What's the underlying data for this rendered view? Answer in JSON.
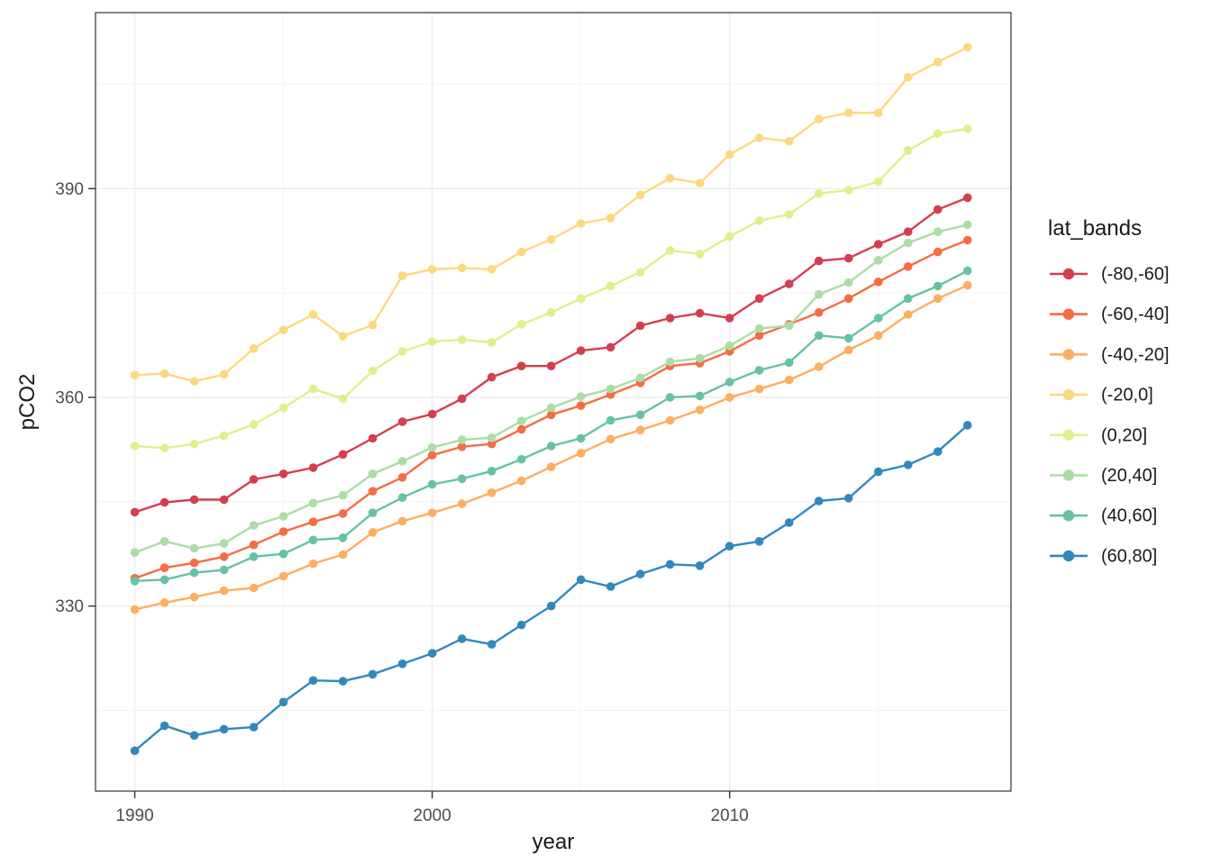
{
  "figure": {
    "background": "#ffffff",
    "panel": {
      "border_color": "#333333",
      "grid_major_color": "#ebebeb",
      "grid_minor_color": "#f2f2f2",
      "tick_color": "#333333",
      "tick_label_color": "#4d4d4d"
    }
  },
  "chart_data": {
    "type": "line",
    "title": "",
    "xlabel": "year",
    "ylabel": "pCO2",
    "legend_title": "lat_bands",
    "legend_position": "right",
    "grid": true,
    "xlim": [
      1988.68,
      2019.46
    ],
    "ylim": [
      303.4,
      415.3
    ],
    "x_ticks": [
      1990,
      2000,
      2010
    ],
    "x_minor": [
      1995,
      2005,
      2015
    ],
    "y_ticks": [
      330,
      360,
      390
    ],
    "y_minor": [
      315,
      345,
      375,
      405
    ],
    "x": [
      1990,
      1991,
      1992,
      1993,
      1994,
      1995,
      1996,
      1997,
      1998,
      1999,
      2000,
      2001,
      2002,
      2003,
      2004,
      2005,
      2006,
      2007,
      2008,
      2009,
      2010,
      2011,
      2012,
      2013,
      2014,
      2015,
      2016,
      2017,
      2018
    ],
    "series": [
      {
        "name": "(-80,-60]",
        "color": "#d53e4f",
        "values": [
          343.5,
          344.9,
          345.3,
          345.3,
          348.2,
          349.0,
          349.9,
          351.8,
          354.1,
          356.5,
          357.6,
          359.8,
          362.9,
          364.5,
          364.5,
          366.7,
          367.2,
          370.3,
          371.4,
          372.1,
          371.4,
          374.2,
          376.3,
          379.6,
          380.0,
          382.0,
          383.8,
          387.0,
          388.7
        ]
      },
      {
        "name": "(-60,-40]",
        "color": "#f46d43",
        "values": [
          334.0,
          335.5,
          336.2,
          337.1,
          338.8,
          340.7,
          342.1,
          343.3,
          346.5,
          348.5,
          351.7,
          352.9,
          353.3,
          355.4,
          357.5,
          358.8,
          360.4,
          362.1,
          364.5,
          364.9,
          366.6,
          368.9,
          370.5,
          372.2,
          374.2,
          376.6,
          378.8,
          380.9,
          382.6
        ]
      },
      {
        "name": "(-40,-20]",
        "color": "#fdae61",
        "values": [
          329.5,
          330.5,
          331.3,
          332.2,
          332.6,
          334.3,
          336.1,
          337.4,
          340.6,
          342.2,
          343.4,
          344.7,
          346.3,
          348.0,
          350.0,
          352.0,
          354.0,
          355.3,
          356.7,
          358.2,
          360.0,
          361.2,
          362.5,
          364.4,
          366.8,
          368.9,
          371.9,
          374.2,
          376.1
        ]
      },
      {
        "name": "(-20,0]",
        "color": "#fcd97f",
        "values": [
          363.2,
          363.4,
          362.3,
          363.3,
          367.0,
          369.7,
          371.9,
          368.8,
          370.4,
          377.5,
          378.4,
          378.6,
          378.4,
          380.9,
          382.7,
          385.0,
          385.8,
          389.1,
          391.5,
          390.8,
          394.9,
          397.3,
          396.8,
          400.0,
          400.9,
          400.9,
          406.0,
          408.2,
          410.3
        ]
      },
      {
        "name": "(0,20]",
        "color": "#e0ef8d",
        "values": [
          353.0,
          352.7,
          353.3,
          354.5,
          356.1,
          358.5,
          361.2,
          359.8,
          363.8,
          366.6,
          368.0,
          368.3,
          367.9,
          370.5,
          372.2,
          374.2,
          376.0,
          378.0,
          381.1,
          380.6,
          383.1,
          385.4,
          386.3,
          389.3,
          389.8,
          391.0,
          395.5,
          397.9,
          398.6
        ]
      },
      {
        "name": "(20,40]",
        "color": "#abdda4",
        "values": [
          337.7,
          339.3,
          338.3,
          339.0,
          341.6,
          342.9,
          344.8,
          345.9,
          349.0,
          350.8,
          352.8,
          353.9,
          354.2,
          356.6,
          358.5,
          360.1,
          361.2,
          362.8,
          365.1,
          365.6,
          367.4,
          369.9,
          370.3,
          374.8,
          376.5,
          379.7,
          382.2,
          383.8,
          384.8
        ]
      },
      {
        "name": "(40,60]",
        "color": "#66c2a5",
        "values": [
          333.6,
          333.8,
          334.8,
          335.2,
          337.1,
          337.5,
          339.5,
          339.8,
          343.4,
          345.6,
          347.5,
          348.3,
          349.4,
          351.1,
          353.0,
          354.1,
          356.7,
          357.5,
          360.0,
          360.2,
          362.2,
          363.9,
          365.0,
          368.9,
          368.5,
          371.4,
          374.2,
          376.0,
          378.2
        ]
      },
      {
        "name": "(60,80]",
        "color": "#3288bd",
        "values": [
          309.2,
          312.8,
          311.4,
          312.3,
          312.6,
          316.2,
          319.3,
          319.2,
          320.2,
          321.7,
          323.2,
          325.3,
          324.5,
          327.3,
          330.0,
          333.8,
          332.8,
          334.6,
          336.0,
          335.8,
          338.6,
          339.3,
          342.0,
          345.1,
          345.5,
          349.3,
          350.3,
          352.2,
          356.0
        ]
      }
    ]
  }
}
